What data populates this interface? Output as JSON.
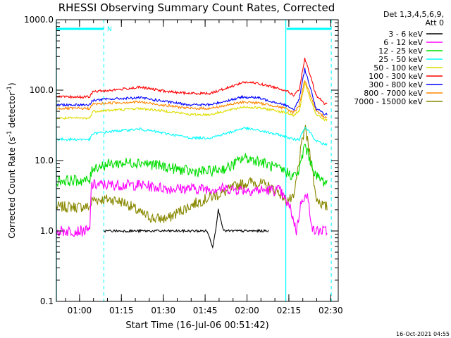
{
  "chart_data": {
    "type": "line",
    "title": "RHESSI Observing Summary Count Rates, Corrected",
    "xlabel": "Start Time (16-Jul-06 00:51:42)",
    "ylabel_main": "Corrected Count Rate (s",
    "ylabel_sup1": "-1",
    "ylabel_mid": " detector",
    "ylabel_sup2": "-1",
    "ylabel_end": ")",
    "y_scale": "log",
    "ylim": [
      0.1,
      1000
    ],
    "y_ticks": [
      {
        "value": 0.1,
        "label": "0.1"
      },
      {
        "value": 1,
        "label": "1.0"
      },
      {
        "value": 10,
        "label": "10.0"
      },
      {
        "value": 100,
        "label": "100.0"
      },
      {
        "value": 1000,
        "label": "1000.0"
      }
    ],
    "x_unit": "minutes after 00:51:42",
    "x_ticks": [
      {
        "time": "01:00",
        "value": 8.3
      },
      {
        "time": "01:15",
        "value": 23.3
      },
      {
        "time": "01:30",
        "value": 38.3
      },
      {
        "time": "01:45",
        "value": 53.3
      },
      {
        "time": "02:00",
        "value": 68.3
      },
      {
        "time": "02:15",
        "value": 83.3
      },
      {
        "time": "02:30",
        "value": 98.3
      }
    ],
    "xlim": [
      0,
      101
    ],
    "legend": {
      "header": [
        "Det 1,3,4,5,6,9,",
        "Att 0"
      ],
      "placement": "right"
    },
    "markers": {
      "night_bars": [
        [
          0,
          17
        ],
        [
          82.5,
          98.5
        ]
      ],
      "N_label": "N",
      "solid_lines": [
        0,
        82.2
      ],
      "dashed_lines": [
        17,
        98.5
      ]
    },
    "series": [
      {
        "name": "3 - 6 keV",
        "color": "#000000",
        "x": [
          17,
          19,
          22,
          26,
          30,
          38,
          46,
          52,
          54,
          56,
          57,
          58,
          60,
          66,
          76
        ],
        "y": [
          1,
          1,
          1,
          1,
          1,
          1,
          1,
          1,
          1,
          0.6,
          1,
          2,
          1,
          1,
          1
        ]
      },
      {
        "name": "6 - 12 keV",
        "color": "#ff00ff",
        "x": [
          0,
          12,
          12.5,
          20,
          30,
          40,
          50,
          60,
          70,
          80,
          84,
          86,
          88,
          90,
          92,
          94,
          97
        ],
        "y": [
          1,
          1,
          4.5,
          4.5,
          4.5,
          4,
          4,
          4,
          3.8,
          3.8,
          2,
          1,
          3,
          3,
          1,
          1,
          1
        ]
      },
      {
        "name": "12 - 25 keV",
        "color": "#00dd00",
        "x": [
          0,
          12,
          13,
          20,
          30,
          40,
          48,
          55,
          62,
          67,
          72,
          78,
          82,
          85,
          87,
          89,
          91,
          93,
          96,
          97
        ],
        "y": [
          5.2,
          5.2,
          8,
          9,
          9.5,
          8,
          7,
          7,
          8,
          11,
          10,
          8,
          7,
          6,
          7,
          17,
          10,
          6,
          5,
          5
        ]
      },
      {
        "name": "25 - 50 keV",
        "color": "#00ffff",
        "x": [
          0,
          12,
          13,
          20,
          30,
          40,
          48,
          55,
          62,
          67,
          72,
          78,
          82,
          85,
          87,
          89,
          91,
          93,
          96,
          97
        ],
        "y": [
          20,
          20,
          24,
          26,
          28,
          24,
          21,
          21,
          25,
          29,
          27,
          24,
          22,
          20,
          20,
          30,
          25,
          19,
          17,
          17
        ]
      },
      {
        "name": "50 - 100 keV",
        "color": "#dddd00",
        "x": [
          0,
          12,
          13,
          20,
          30,
          40,
          48,
          55,
          62,
          67,
          72,
          78,
          82,
          85,
          87,
          89,
          91,
          93,
          96,
          97
        ],
        "y": [
          40,
          40,
          50,
          52,
          55,
          50,
          45,
          45,
          52,
          58,
          56,
          52,
          48,
          44,
          50,
          125,
          75,
          45,
          38,
          38
        ]
      },
      {
        "name": "100 - 300 keV",
        "color": "#ff0000",
        "x": [
          0,
          12,
          13,
          20,
          30,
          40,
          48,
          55,
          62,
          67,
          72,
          78,
          82,
          85,
          87,
          89,
          91,
          93,
          96,
          97
        ],
        "y": [
          80,
          80,
          95,
          100,
          110,
          95,
          90,
          90,
          110,
          130,
          125,
          110,
          100,
          85,
          100,
          280,
          160,
          85,
          65,
          65
        ]
      },
      {
        "name": "300 - 800 keV",
        "color": "#0000ff",
        "x": [
          0,
          12,
          13,
          20,
          30,
          40,
          48,
          55,
          62,
          67,
          72,
          78,
          82,
          85,
          87,
          89,
          91,
          93,
          96,
          97
        ],
        "y": [
          62,
          62,
          72,
          75,
          78,
          68,
          62,
          62,
          72,
          80,
          78,
          68,
          62,
          52,
          75,
          200,
          110,
          55,
          46,
          46
        ]
      },
      {
        "name": "800 - 7000 keV",
        "color": "#ff8800",
        "x": [
          0,
          12,
          13,
          20,
          30,
          40,
          48,
          55,
          62,
          67,
          72,
          78,
          82,
          85,
          87,
          89,
          91,
          93,
          96,
          97
        ],
        "y": [
          55,
          55,
          63,
          66,
          68,
          60,
          55,
          55,
          62,
          68,
          66,
          60,
          55,
          48,
          60,
          140,
          85,
          50,
          42,
          42
        ]
      },
      {
        "name": "7000 - 15000 keV",
        "color": "#888800",
        "x": [
          0,
          12,
          13,
          20,
          25,
          30,
          35,
          40,
          45,
          50,
          55,
          60,
          65,
          70,
          75,
          80,
          82,
          85,
          87,
          89,
          91,
          93,
          96,
          97
        ],
        "y": [
          2.2,
          2.2,
          2.8,
          2.8,
          2.5,
          1.8,
          1.5,
          1.5,
          2,
          2.5,
          3,
          3.5,
          4.5,
          5,
          4.5,
          3.5,
          2.8,
          2.8,
          10,
          30,
          12,
          3,
          2.2,
          2.2
        ]
      }
    ]
  },
  "footer": {
    "timestamp": "16-Oct-2021 04:55"
  }
}
